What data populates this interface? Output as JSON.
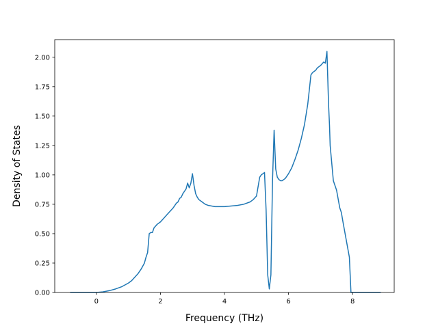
{
  "chart_data": {
    "type": "line",
    "title": "",
    "xlabel": "Frequency (THz)",
    "ylabel": "Density of States",
    "xlim": [
      -1.3,
      9.3
    ],
    "ylim": [
      0.0,
      2.15
    ],
    "x_ticks": [
      "0",
      "2",
      "4",
      "6",
      "8"
    ],
    "x_tick_values": [
      0,
      2,
      4,
      6,
      8
    ],
    "y_ticks": [
      "0.00",
      "0.25",
      "0.50",
      "0.75",
      "1.00",
      "1.25",
      "1.50",
      "1.75",
      "2.00"
    ],
    "y_tick_values": [
      0.0,
      0.25,
      0.5,
      0.75,
      1.0,
      1.25,
      1.5,
      1.75,
      2.0
    ],
    "grid": false,
    "line_color": "#1f77b4",
    "series": [
      {
        "x": [
          -0.82,
          0.0,
          0.2,
          0.4,
          0.6,
          0.8,
          1.0,
          1.1,
          1.2,
          1.3,
          1.4,
          1.5,
          1.55,
          1.6,
          1.65,
          1.7,
          1.75,
          1.8,
          1.9,
          2.0,
          2.1,
          2.2,
          2.3,
          2.4,
          2.5,
          2.55,
          2.6,
          2.65,
          2.7,
          2.75,
          2.8,
          2.85,
          2.9,
          2.95,
          3.0,
          3.05,
          3.1,
          3.15,
          3.2,
          3.3,
          3.4,
          3.5,
          3.6,
          3.7,
          3.8,
          4.0,
          4.2,
          4.4,
          4.6,
          4.8,
          4.9,
          5.0,
          5.1,
          5.15,
          5.2,
          5.25,
          5.3,
          5.35,
          5.4,
          5.45,
          5.5,
          5.55,
          5.6,
          5.65,
          5.7,
          5.75,
          5.8,
          5.9,
          6.0,
          6.1,
          6.2,
          6.3,
          6.4,
          6.5,
          6.6,
          6.7,
          6.75,
          6.8,
          6.85,
          6.9,
          7.0,
          7.1,
          7.15,
          7.2,
          7.25,
          7.28,
          7.3,
          7.35,
          7.4,
          7.5,
          7.6,
          7.65,
          7.7,
          7.8,
          7.9,
          7.95,
          8.02,
          8.1,
          8.3,
          8.5,
          8.7,
          8.88
        ],
        "y": [
          0.0,
          0.0,
          0.005,
          0.015,
          0.03,
          0.05,
          0.08,
          0.1,
          0.13,
          0.16,
          0.2,
          0.25,
          0.3,
          0.34,
          0.5,
          0.51,
          0.51,
          0.55,
          0.58,
          0.6,
          0.63,
          0.66,
          0.69,
          0.72,
          0.76,
          0.77,
          0.8,
          0.81,
          0.84,
          0.86,
          0.88,
          0.93,
          0.89,
          0.93,
          1.01,
          0.91,
          0.84,
          0.81,
          0.79,
          0.77,
          0.75,
          0.74,
          0.735,
          0.73,
          0.73,
          0.73,
          0.735,
          0.74,
          0.75,
          0.77,
          0.79,
          0.82,
          0.98,
          1.0,
          1.01,
          1.02,
          0.7,
          0.15,
          0.03,
          0.15,
          0.95,
          1.38,
          1.05,
          0.98,
          0.96,
          0.95,
          0.95,
          0.97,
          1.01,
          1.06,
          1.13,
          1.21,
          1.31,
          1.43,
          1.6,
          1.85,
          1.87,
          1.88,
          1.89,
          1.91,
          1.93,
          1.96,
          1.95,
          2.05,
          1.6,
          1.42,
          1.25,
          1.1,
          0.95,
          0.87,
          0.72,
          0.68,
          0.6,
          0.45,
          0.3,
          0.0,
          0.0,
          0.0,
          0.0,
          0.0,
          0.0,
          0.0
        ]
      }
    ]
  }
}
